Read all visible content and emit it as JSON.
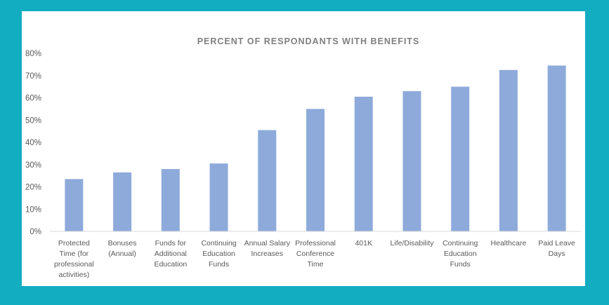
{
  "colors": {
    "frame": "#12adc1",
    "background": "#ffffff",
    "bar": "#8eaadb",
    "axis": "#d9d9d9",
    "text": "#595959",
    "title": "#7f7f7f"
  },
  "chart_data": {
    "type": "bar",
    "title": "PERCENT OF RESPONDANTS WITH BENEFITS",
    "xlabel": "",
    "ylabel": "",
    "ylim": [
      0,
      80
    ],
    "yticks": [
      "0%",
      "10%",
      "20%",
      "30%",
      "40%",
      "50%",
      "60%",
      "70%",
      "80%"
    ],
    "grid": false,
    "categories": [
      [
        "Protected",
        "Time (for",
        "professional",
        "activities)"
      ],
      [
        "Bonuses",
        "(Annual)"
      ],
      [
        "Funds for",
        "Additional",
        "Education"
      ],
      [
        "Continuing",
        "Education",
        "Funds"
      ],
      [
        "Annual Salary",
        "Increases"
      ],
      [
        "Professional",
        "Conference",
        "Time"
      ],
      [
        "401K"
      ],
      [
        "Life/Disability"
      ],
      [
        "Continuing",
        "Education",
        "Funds"
      ],
      [
        "Healthcare"
      ],
      [
        "Paid Leave",
        "Days"
      ]
    ],
    "values": [
      23.5,
      26.5,
      28,
      30.5,
      45.5,
      55,
      60.5,
      63,
      65,
      72.5,
      74.5
    ]
  }
}
